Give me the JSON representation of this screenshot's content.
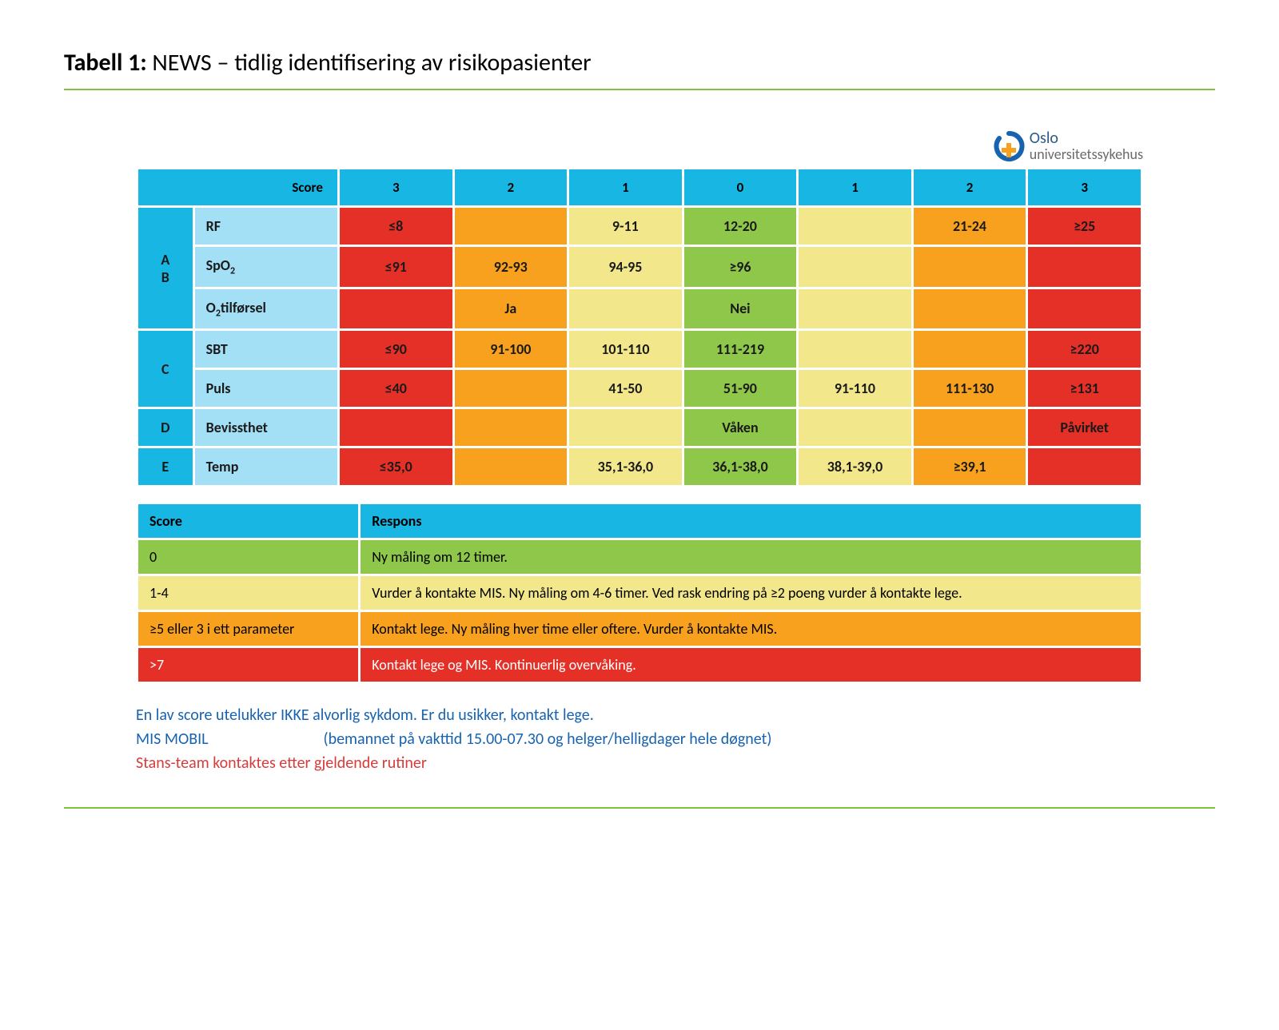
{
  "colors": {
    "header_blue": "#18b7e3",
    "light_blue": "#a3dff5",
    "red": "#e53027",
    "orange": "#f8a11f",
    "yellow": "#f3e78c",
    "green": "#8fc74a",
    "rule": "#7fc241",
    "text_blue": "#1763b0",
    "text_red": "#d93a3a",
    "white": "#ffffff"
  },
  "title_bold": "Tabell 1:",
  "title_rest": " NEWS – tidlig identifisering av risikopasienter",
  "logo": {
    "line1": "Oslo",
    "line2": "universitetssykehus"
  },
  "news_table": {
    "score_label": "Score",
    "score_headers": [
      "3",
      "2",
      "1",
      "0",
      "1",
      "2",
      "3"
    ],
    "col_widths_pct": [
      5.5,
      14.5,
      11.43,
      11.43,
      11.43,
      11.43,
      11.43,
      11.43,
      11.43
    ],
    "groups": [
      {
        "label": "A\nB",
        "rows": [
          {
            "param": "RF",
            "cells": [
              {
                "v": "≤8",
                "c": "red"
              },
              {
                "v": "",
                "c": "orange"
              },
              {
                "v": "9-11",
                "c": "yellow"
              },
              {
                "v": "12-20",
                "c": "green"
              },
              {
                "v": "",
                "c": "yellow"
              },
              {
                "v": "21-24",
                "c": "orange"
              },
              {
                "v": "≥25",
                "c": "red"
              }
            ]
          },
          {
            "param_html": "SpO<sub class=\"sub\">2</sub>",
            "cells": [
              {
                "v": "≤91",
                "c": "red"
              },
              {
                "v": "92-93",
                "c": "orange"
              },
              {
                "v": "94-95",
                "c": "yellow"
              },
              {
                "v": "≥96",
                "c": "green"
              },
              {
                "v": "",
                "c": "yellow"
              },
              {
                "v": "",
                "c": "orange"
              },
              {
                "v": "",
                "c": "red"
              }
            ]
          },
          {
            "param_html": "O<sub class=\"sub\">2</sub>tilførsel",
            "cells": [
              {
                "v": "",
                "c": "red"
              },
              {
                "v": "Ja",
                "c": "orange"
              },
              {
                "v": "",
                "c": "yellow"
              },
              {
                "v": "Nei",
                "c": "green"
              },
              {
                "v": "",
                "c": "yellow"
              },
              {
                "v": "",
                "c": "orange"
              },
              {
                "v": "",
                "c": "red"
              }
            ]
          }
        ]
      },
      {
        "label": "C",
        "rows": [
          {
            "param": "SBT",
            "cells": [
              {
                "v": "≤90",
                "c": "red"
              },
              {
                "v": "91-100",
                "c": "orange"
              },
              {
                "v": "101-110",
                "c": "yellow"
              },
              {
                "v": "111-219",
                "c": "green"
              },
              {
                "v": "",
                "c": "yellow"
              },
              {
                "v": "",
                "c": "orange"
              },
              {
                "v": "≥220",
                "c": "red"
              }
            ]
          },
          {
            "param": "Puls",
            "cells": [
              {
                "v": "≤40",
                "c": "red"
              },
              {
                "v": "",
                "c": "orange"
              },
              {
                "v": "41-50",
                "c": "yellow"
              },
              {
                "v": "51-90",
                "c": "green"
              },
              {
                "v": "91-110",
                "c": "yellow"
              },
              {
                "v": "111-130",
                "c": "orange"
              },
              {
                "v": "≥131",
                "c": "red"
              }
            ]
          }
        ]
      },
      {
        "label": "D",
        "rows": [
          {
            "param": "Bevissthet",
            "cells": [
              {
                "v": "",
                "c": "red"
              },
              {
                "v": "",
                "c": "orange"
              },
              {
                "v": "",
                "c": "yellow"
              },
              {
                "v": "Våken",
                "c": "green"
              },
              {
                "v": "",
                "c": "yellow"
              },
              {
                "v": "",
                "c": "orange"
              },
              {
                "v": "Påvirket",
                "c": "red"
              }
            ]
          }
        ]
      },
      {
        "label": "E",
        "rows": [
          {
            "param": "Temp",
            "cells": [
              {
                "v": "≤35,0",
                "c": "red"
              },
              {
                "v": "",
                "c": "orange"
              },
              {
                "v": "35,1-36,0",
                "c": "yellow"
              },
              {
                "v": "36,1-38,0",
                "c": "green"
              },
              {
                "v": "38,1-39,0",
                "c": "yellow"
              },
              {
                "v": "≥39,1",
                "c": "orange"
              },
              {
                "v": "",
                "c": "red"
              }
            ]
          }
        ]
      }
    ]
  },
  "response_table": {
    "col_widths_pct": [
      22,
      78
    ],
    "headers": [
      "Score",
      "Respons"
    ],
    "rows": [
      {
        "score": "0",
        "text": "Ny måling om 12 timer.",
        "c": "green"
      },
      {
        "score": "1-4",
        "text": "Vurder å kontakte MIS. Ny måling om 4-6 timer. Ved rask endring på ≥2 poeng vurder å kontakte lege.",
        "c": "yellow"
      },
      {
        "score": "≥5 eller 3 i ett parameter",
        "text": "Kontakt lege. Ny måling hver time eller oftere. Vurder å kontakte MIS.",
        "c": "orange"
      },
      {
        "score": ">7",
        "text": "Kontakt lege og MIS. Kontinuerlig overvåking.",
        "c": "red"
      }
    ]
  },
  "notes": {
    "line1": "En lav score utelukker IKKE alvorlig sykdom. Er du usikker, kontakt lege.",
    "line2_label": "MIS MOBIL",
    "line2_rest": "(bemannet på vakttid 15.00-07.30 og helger/helligdager hele døgnet)",
    "line3": "Stans-team kontaktes etter gjeldende rutiner"
  }
}
